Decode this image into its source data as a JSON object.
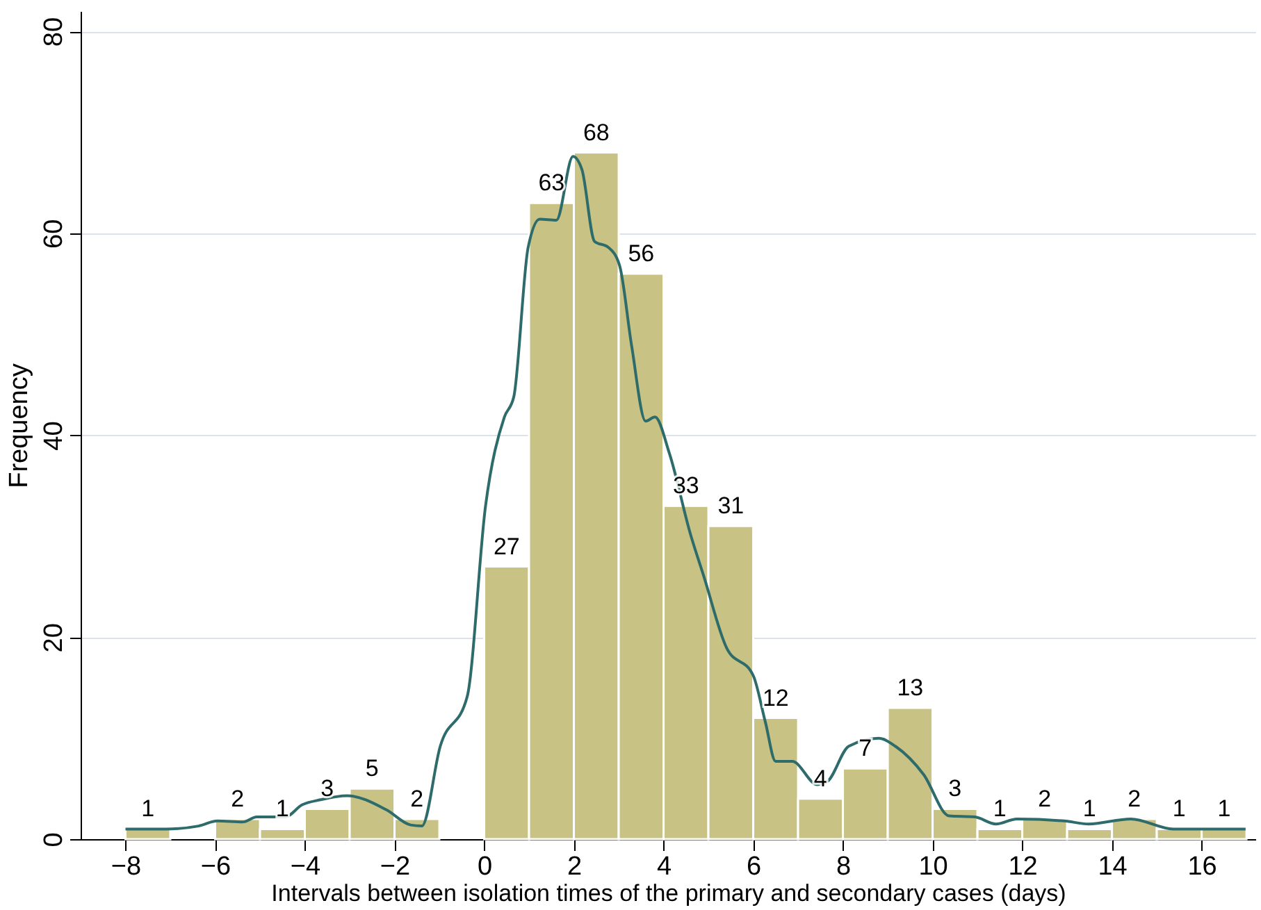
{
  "chart_data": {
    "type": "histogram",
    "xlabel": "Intervals between isolation times of the primary and secondary cases (days)",
    "ylabel": "Frequency",
    "bins": [
      -8,
      -7,
      -6,
      -5,
      -4,
      -3,
      -2,
      -1,
      0,
      1,
      2,
      3,
      4,
      5,
      6,
      7,
      8,
      9,
      10,
      11,
      12,
      13,
      14,
      15,
      16,
      17
    ],
    "values": [
      1,
      0,
      2,
      1,
      3,
      5,
      2,
      0,
      27,
      63,
      68,
      56,
      33,
      31,
      12,
      4,
      7,
      13,
      3,
      1,
      2,
      1,
      2,
      1,
      1
    ],
    "value_labels": [
      "1",
      null,
      "2",
      "1",
      "3",
      "5",
      "2",
      null,
      "27",
      "63",
      "68",
      "56",
      "33",
      "31",
      "12",
      "4",
      "7",
      "13",
      "3",
      "1",
      "2",
      "1",
      "2",
      "1",
      "1"
    ],
    "color": "#c8c384",
    "series": [
      {
        "type": "line",
        "color": "#2e6b6b",
        "x": [
          -8,
          -7.1,
          -6.37,
          -5.95,
          -5.39,
          -5.07,
          -4.44,
          -4.06,
          -3.65,
          -3.06,
          -2.18,
          -1.64,
          -1.39,
          -0.98,
          -0.38,
          0.03,
          0.45,
          0.66,
          0.98,
          1.24,
          1.61,
          1.98,
          2.18,
          2.46,
          2.77,
          3.02,
          3.29,
          3.6,
          3.81,
          4.13,
          4.6,
          4.9,
          5.4,
          6.0,
          6.27,
          6.5,
          6.87,
          7.43,
          7.65,
          8.13,
          8.8,
          9.17,
          9.8,
          10.37,
          10.94,
          11.41,
          11.88,
          12.94,
          13.48,
          14.42,
          15.37,
          16.98
        ],
        "values": [
          1.0,
          1.0,
          1.3,
          1.8,
          1.7,
          2.2,
          2.2,
          3.4,
          3.9,
          4.3,
          2.9,
          1.4,
          1.3,
          9.2,
          14.1,
          33,
          41.8,
          43.8,
          58.6,
          61.4,
          61.3,
          67.6,
          66.3,
          59.2,
          58.6,
          56.8,
          48.8,
          41.4,
          41.8,
          38.2,
          30.2,
          26,
          19,
          16.2,
          11.6,
          7.7,
          7.7,
          5.4,
          5.7,
          9.2,
          10.0,
          9.2,
          6.4,
          2.3,
          2.2,
          1.5,
          2.0,
          1.8,
          1.5,
          2.0,
          1.0,
          1.0
        ]
      }
    ],
    "xlim": [
      -9,
      17.2
    ],
    "xticks": [
      -8,
      -6,
      -4,
      -2,
      0,
      2,
      4,
      6,
      8,
      10,
      12,
      14,
      16
    ],
    "ylim": [
      0,
      82
    ],
    "yticks": [
      0,
      20,
      40,
      60,
      80
    ],
    "grid": "y"
  }
}
